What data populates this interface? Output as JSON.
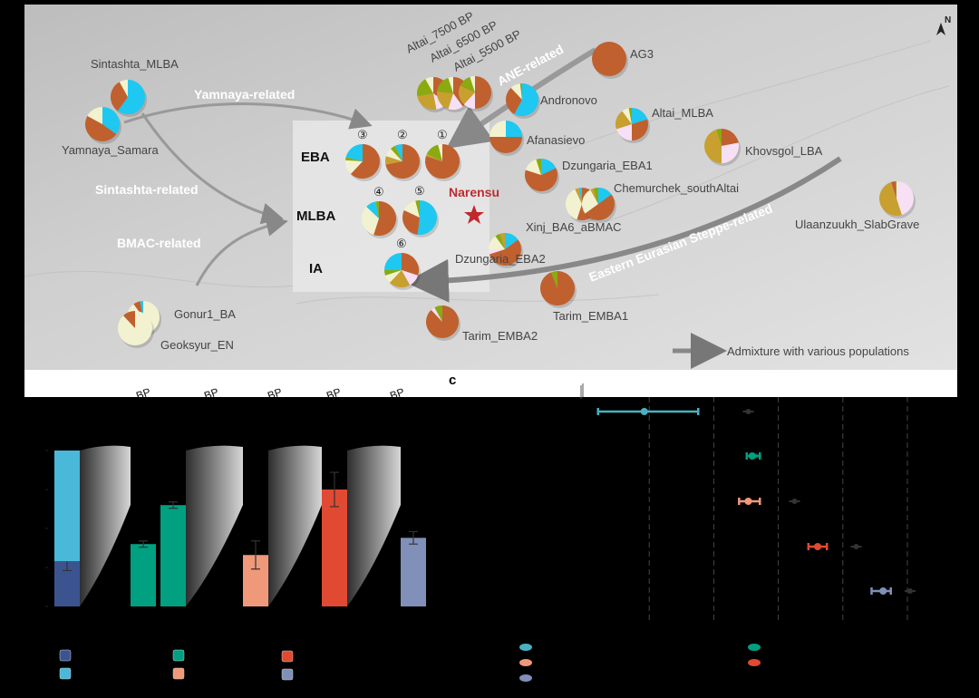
{
  "colors": {
    "brown": "#c0602e",
    "cyan": "#1ec8f0",
    "cream": "#f2f2d0",
    "olive": "#8aaa10",
    "gold": "#c8a030",
    "pink": "#f8e0f4",
    "star": "#c0282e"
  },
  "map": {
    "north_label": "N",
    "site_label": "Narensu",
    "legend_text": "Admixture with various populations",
    "periods": [
      "EBA",
      "MLBA",
      "IA"
    ],
    "flows": [
      "Yamnaya-related",
      "Sintashta-related",
      "BMAC-related",
      "ANE-related",
      "Eastern Eurasian Steppe-related"
    ],
    "panel_pies": [
      {
        "num": "③",
        "slices": {
          "brown": 0.62,
          "cream": 0.14,
          "olive": 0.03,
          "cyan": 0.21
        }
      },
      {
        "num": "②",
        "slices": {
          "brown": 0.72,
          "gold": 0.08,
          "cream": 0.08,
          "olive": 0.05,
          "cyan": 0.07
        }
      },
      {
        "num": "①",
        "slices": {
          "brown": 0.8,
          "gold": 0.02,
          "olive": 0.14,
          "cream": 0.04
        }
      },
      {
        "num": "④",
        "slices": {
          "brown": 0.55,
          "cream": 0.32,
          "cyan": 0.1,
          "olive": 0.03
        }
      },
      {
        "num": "⑤",
        "slices": {
          "cyan": 0.52,
          "brown": 0.3,
          "cream": 0.14,
          "olive": 0.04
        }
      },
      {
        "num": "⑥",
        "slices": {
          "brown": 0.3,
          "pink": 0.12,
          "gold": 0.2,
          "cream": 0.08,
          "olive": 0.05,
          "cyan": 0.25
        }
      }
    ],
    "populations": [
      {
        "name": "Sintashta_MLBA",
        "slices": {
          "cyan": 0.6,
          "brown": 0.32,
          "cream": 0.08
        }
      },
      {
        "name": "Yamnaya_Samara",
        "slices": {
          "cyan": 0.35,
          "brown": 0.48,
          "cream": 0.17
        }
      },
      {
        "name": "Altai_7500 BP",
        "slices": {
          "brown": 0.35,
          "pink": 0.12,
          "gold": 0.25,
          "olive": 0.2,
          "cream": 0.08
        }
      },
      {
        "name": "Altai_6500 BP",
        "slices": {
          "brown": 0.4,
          "pink": 0.15,
          "gold": 0.22,
          "olive": 0.18,
          "cream": 0.05
        }
      },
      {
        "name": "Altai_5500 BP",
        "slices": {
          "brown": 0.5,
          "pink": 0.12,
          "gold": 0.2,
          "olive": 0.13,
          "cream": 0.05
        }
      },
      {
        "name": "AG3",
        "slices": {
          "brown": 1.0
        }
      },
      {
        "name": "Andronovo",
        "slices": {
          "cyan": 0.58,
          "brown": 0.3,
          "cream": 0.1,
          "olive": 0.02
        }
      },
      {
        "name": "Afanasievo",
        "slices": {
          "cyan": 0.25,
          "brown": 0.5,
          "cream": 0.25
        }
      },
      {
        "name": "Altai_MLBA",
        "slices": {
          "cyan": 0.2,
          "brown": 0.3,
          "pink": 0.2,
          "gold": 0.2,
          "cream": 0.07,
          "olive": 0.03
        }
      },
      {
        "name": "Khovsgol_LBA",
        "slices": {
          "brown": 0.22,
          "pink": 0.28,
          "gold": 0.45,
          "olive": 0.05
        }
      },
      {
        "name": "Dzungaria_EBA1",
        "slices": {
          "cyan": 0.18,
          "brown": 0.62,
          "cream": 0.15,
          "olive": 0.05
        }
      },
      {
        "name": "Chemurchek_southAltai",
        "slices": {
          "cyan": 0.15,
          "brown": 0.5,
          "cream": 0.27,
          "gold": 0.03,
          "olive": 0.05
        }
      },
      {
        "name": "Xinj_BA6_aBMAC",
        "slices": {
          "brown": 0.55,
          "cream": 0.38,
          "gold": 0.04,
          "cyan": 0.03
        }
      },
      {
        "name": "Dzungaria_EBA2",
        "slices": {
          "cyan": 0.15,
          "brown": 0.55,
          "pink": 0.05,
          "cream": 0.15,
          "olive": 0.05,
          "gold": 0.05
        }
      },
      {
        "name": "Tarim_EMBA1",
        "slices": {
          "brown": 0.94,
          "olive": 0.06
        }
      },
      {
        "name": "Tarim_EMBA2",
        "slices": {
          "brown": 0.88,
          "pink": 0.04,
          "olive": 0.08
        }
      },
      {
        "name": "Ulaanzuukh_SlabGrave",
        "slices": {
          "pink": 0.45,
          "gold": 0.5,
          "brown": 0.04,
          "olive": 0.01
        }
      },
      {
        "name": "Gonur1_BA",
        "slices": {
          "cream": 0.9,
          "brown": 0.07,
          "cyan": 0.03
        }
      },
      {
        "name": "Geoksyur_EN",
        "slices": {
          "cream": 0.88,
          "brown": 0.12
        }
      }
    ]
  },
  "panel_c_label": "c",
  "strip_labels": [
    "BP",
    "BP",
    "BP",
    "BP",
    "BP"
  ],
  "chart_data": [
    {
      "type": "bar",
      "ylim": [
        0,
        1
      ],
      "bars": [
        {
          "stack": [
            {
              "value": 0.29,
              "color": "#3b5490",
              "err": 0.06
            },
            {
              "value": 0.71,
              "color": "#4ab8d8"
            }
          ]
        },
        {
          "stack": [
            {
              "value": 0.4,
              "color": "#00a080",
              "err": 0.02
            }
          ]
        },
        {
          "stack": [
            {
              "value": 0.65,
              "color": "#00a080",
              "err": 0.02
            }
          ]
        },
        {
          "stack": [
            {
              "value": 0.33,
              "color": "#f0987a",
              "err": 0.09
            }
          ]
        },
        {
          "stack": [
            {
              "value": 0.75,
              "color": "#e04a32",
              "err": 0.11
            }
          ]
        },
        {
          "stack": [
            {
              "value": 0.44,
              "color": "#8090b8",
              "err": 0.04
            }
          ]
        }
      ],
      "legend_colors": [
        "#3b5490",
        "#4ab8d8",
        "#00a080",
        "#f0987a",
        "#e04a32",
        "#8090b8"
      ]
    },
    {
      "type": "scatter",
      "xlim": [
        0,
        5
      ],
      "rows": [
        {
          "color": "#4ab0c0",
          "x": 0.75,
          "lo": 0.15,
          "hi": 1.45,
          "grey": 2.1
        },
        {
          "color": "#00a080",
          "x": 2.15,
          "lo": 2.08,
          "hi": 2.25,
          "grey": 2.2
        },
        {
          "color": "#f0987a",
          "x": 2.1,
          "lo": 1.98,
          "hi": 2.25,
          "grey": 2.7
        },
        {
          "color": "#e04a32",
          "x": 3.0,
          "lo": 2.88,
          "hi": 3.12,
          "grey": 3.5
        },
        {
          "color": "#8090b8",
          "x": 3.85,
          "lo": 3.7,
          "hi": 3.95,
          "grey": 4.2
        }
      ],
      "legend_colors": [
        "#4ab0c0",
        "#f0987a",
        "#8090b8",
        "#00a080",
        "#e04a32"
      ]
    }
  ]
}
